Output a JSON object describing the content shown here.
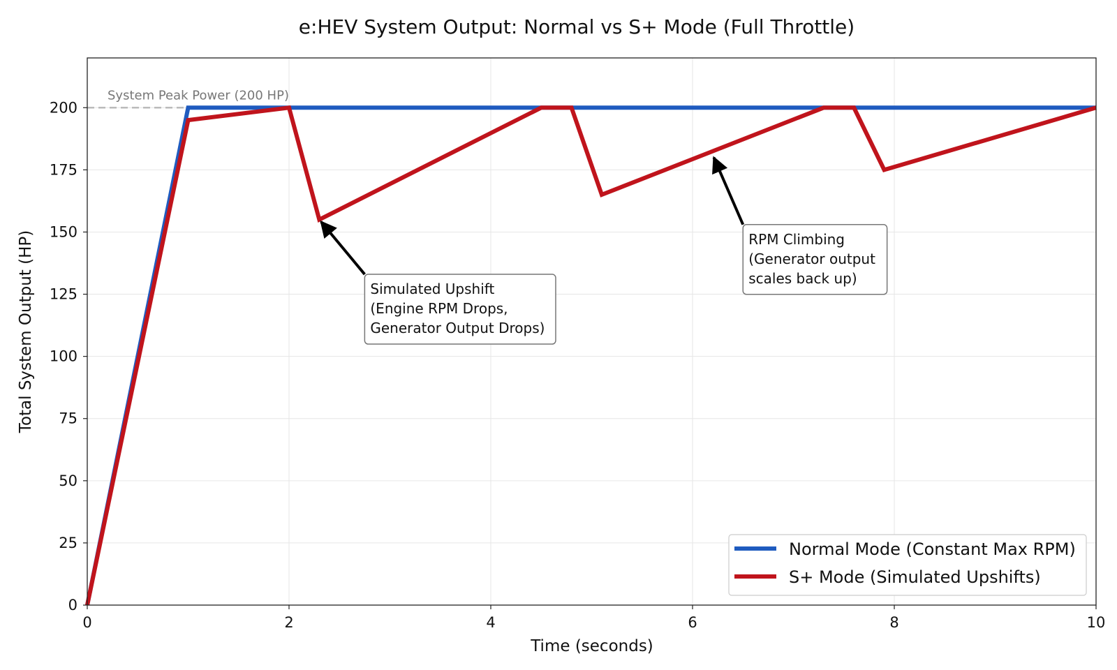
{
  "chart_data": {
    "type": "line",
    "title": "e:HEV System Output: Normal vs S+ Mode (Full Throttle)",
    "xlabel": "Time (seconds)",
    "ylabel": "Total System Output (HP)",
    "xlim": [
      0,
      10
    ],
    "ylim": [
      0,
      220
    ],
    "xticks": [
      "0",
      "2",
      "4",
      "6",
      "8",
      "10"
    ],
    "yticks": [
      "0",
      "25",
      "50",
      "75",
      "100",
      "125",
      "150",
      "175",
      "200"
    ],
    "grid": true,
    "legend_position": "bottom-right",
    "reference_line": {
      "label": "System Peak Power (200 HP)",
      "y": 200,
      "color": "#bbbbbb",
      "style": "dashed"
    },
    "series": [
      {
        "name": "Normal Mode (Constant Max RPM)",
        "color": "#1f5bbf",
        "x": [
          0,
          1,
          10
        ],
        "y": [
          0,
          200,
          200
        ]
      },
      {
        "name": "S+ Mode (Simulated Upshifts)",
        "color": "#c0141c",
        "x": [
          0,
          1,
          2,
          2.3,
          4.5,
          4.8,
          5.1,
          7.3,
          7.6,
          7.9,
          10
        ],
        "y": [
          0,
          195,
          200,
          155,
          200,
          200,
          165,
          200,
          200,
          175,
          200
        ]
      }
    ],
    "annotations": [
      {
        "lines": [
          "Simulated Upshift",
          "(Engine RPM Drops,",
          "Generator Output Drops)"
        ],
        "arrow_to": [
          2.3,
          155
        ],
        "arrow_from": [
          2.75,
          133
        ]
      },
      {
        "lines": [
          "RPM Climbing",
          "(Generator output",
          "scales back up)"
        ],
        "arrow_to": [
          6.2,
          181
        ],
        "arrow_from": [
          6.5,
          153
        ]
      }
    ]
  }
}
